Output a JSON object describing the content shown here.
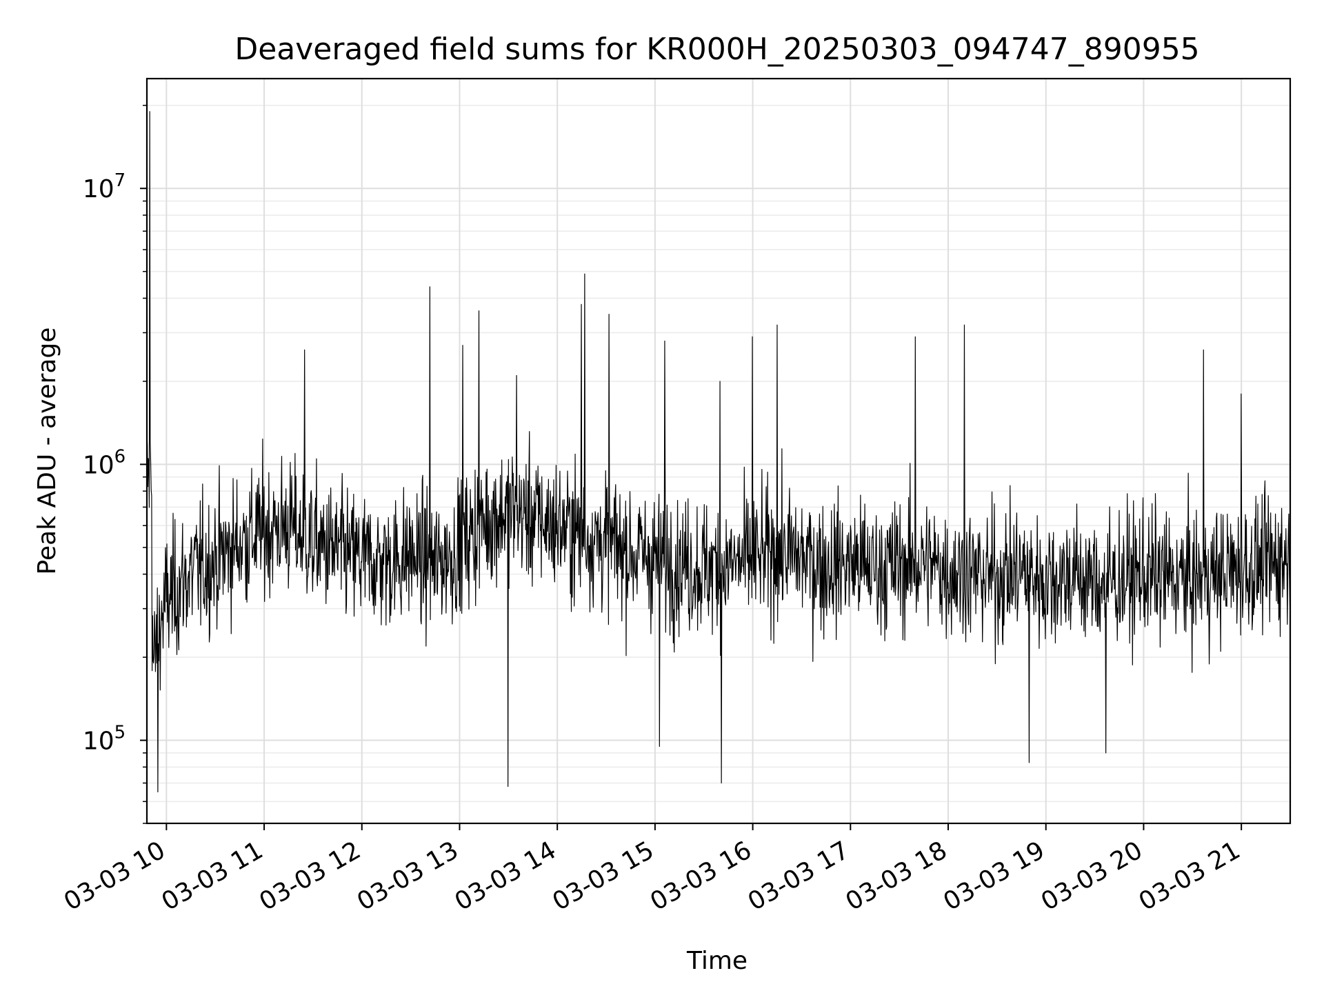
{
  "chart_data": {
    "type": "line",
    "title": "Deaveraged field sums for KR000H_20250303_094747_890955",
    "xlabel": "Time",
    "ylabel": "Peak ADU - average",
    "y_scale": "log",
    "ylim": [
      50000,
      25000000
    ],
    "xlim": [
      "03-03 09:48",
      "03-03 21:30"
    ],
    "grid": true,
    "grid_minor": true,
    "line_color": "#000000",
    "x_ticks": [
      "03-03 10",
      "03-03 11",
      "03-03 12",
      "03-03 13",
      "03-03 14",
      "03-03 15",
      "03-03 16",
      "03-03 17",
      "03-03 18",
      "03-03 19",
      "03-03 20",
      "03-03 21"
    ],
    "y_ticks": [
      {
        "base": "10",
        "exp": "5",
        "value": 100000
      },
      {
        "base": "10",
        "exp": "6",
        "value": 1000000
      },
      {
        "base": "10",
        "exp": "7",
        "value": 10000000
      }
    ],
    "series": [
      {
        "name": "",
        "x": [
          "03-03 09:48",
          "03-03 09:50",
          "03-03 09:52",
          "03-03 09:55",
          "03-03 10:00",
          "03-03 10:15",
          "03-03 10:30",
          "03-03 10:45",
          "03-03 11:00",
          "03-03 11:15",
          "03-03 11:30",
          "03-03 11:45",
          "03-03 12:00",
          "03-03 12:15",
          "03-03 12:30",
          "03-03 12:45",
          "03-03 13:00",
          "03-03 13:15",
          "03-03 13:30",
          "03-03 13:45",
          "03-03 14:00",
          "03-03 14:15",
          "03-03 14:30",
          "03-03 14:45",
          "03-03 15:00",
          "03-03 15:15",
          "03-03 15:30",
          "03-03 15:45",
          "03-03 16:00",
          "03-03 16:15",
          "03-03 16:30",
          "03-03 16:45",
          "03-03 17:00",
          "03-03 17:15",
          "03-03 17:30",
          "03-03 17:45",
          "03-03 18:00",
          "03-03 18:15",
          "03-03 18:30",
          "03-03 18:45",
          "03-03 19:00",
          "03-03 19:15",
          "03-03 19:30",
          "03-03 19:45",
          "03-03 20:00",
          "03-03 20:15",
          "03-03 20:30",
          "03-03 20:45",
          "03-03 21:00",
          "03-03 21:15",
          "03-03 21:30"
        ],
        "y": [
          19000000,
          700000,
          180000,
          250000,
          320000,
          400000,
          450000,
          520000,
          580000,
          600000,
          520000,
          480000,
          450000,
          440000,
          470000,
          430000,
          500000,
          620000,
          680000,
          640000,
          600000,
          560000,
          520000,
          480000,
          460000,
          440000,
          420000,
          430000,
          450000,
          480000,
          460000,
          430000,
          440000,
          420000,
          430000,
          440000,
          410000,
          400000,
          390000,
          410000,
          380000,
          400000,
          370000,
          380000,
          400000,
          390000,
          380000,
          400000,
          420000,
          430000,
          470000
        ]
      }
    ],
    "spikes": [
      {
        "x": "03-03 09:50",
        "y": 19000000
      },
      {
        "x": "03-03 09:55",
        "y": 65000
      },
      {
        "x": "03-03 11:25",
        "y": 2600000
      },
      {
        "x": "03-03 12:42",
        "y": 4400000
      },
      {
        "x": "03-03 13:02",
        "y": 2700000
      },
      {
        "x": "03-03 13:12",
        "y": 3600000
      },
      {
        "x": "03-03 13:30",
        "y": 68000
      },
      {
        "x": "03-03 13:35",
        "y": 2100000
      },
      {
        "x": "03-03 14:15",
        "y": 3800000
      },
      {
        "x": "03-03 14:17",
        "y": 4900000
      },
      {
        "x": "03-03 14:32",
        "y": 3500000
      },
      {
        "x": "03-03 15:03",
        "y": 95000
      },
      {
        "x": "03-03 15:06",
        "y": 2800000
      },
      {
        "x": "03-03 15:40",
        "y": 2000000
      },
      {
        "x": "03-03 15:41",
        "y": 70000
      },
      {
        "x": "03-03 16:00",
        "y": 2900000
      },
      {
        "x": "03-03 16:15",
        "y": 3200000
      },
      {
        "x": "03-03 17:40",
        "y": 2900000
      },
      {
        "x": "03-03 18:10",
        "y": 3200000
      },
      {
        "x": "03-03 18:50",
        "y": 83000
      },
      {
        "x": "03-03 19:37",
        "y": 90000
      },
      {
        "x": "03-03 20:37",
        "y": 2600000
      },
      {
        "x": "03-03 21:00",
        "y": 1800000
      }
    ]
  }
}
